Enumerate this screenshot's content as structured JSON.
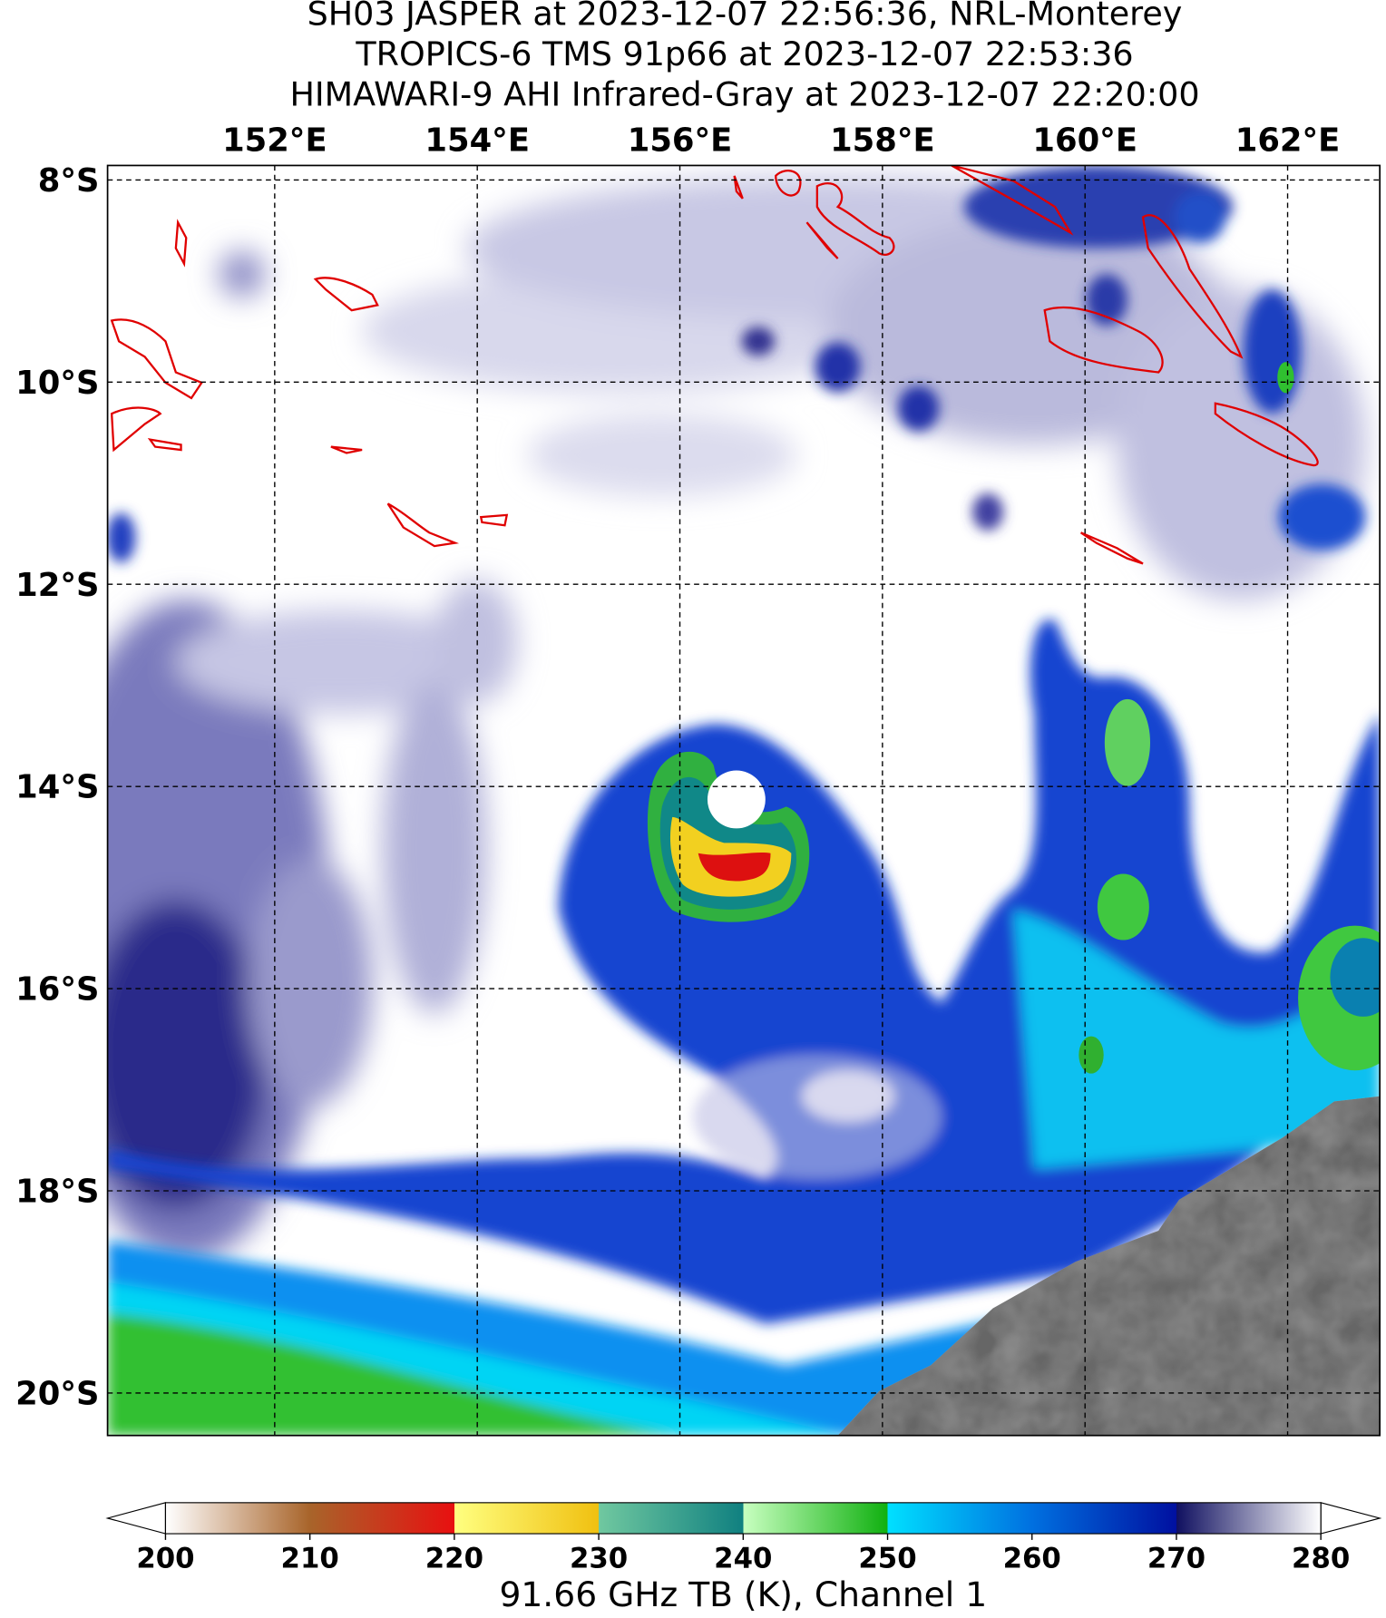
{
  "chart_data": {
    "type": "map",
    "title_lines": [
      "SH03 JASPER at 2023-12-07 22:56:36, NRL-Monterey",
      "TROPICS-6 TMS 91p66 at 2023-12-07 22:53:36",
      "HIMAWARI-9 AHI Infrared-Gray at 2023-12-07 22:20:00"
    ],
    "xlim": [
      150.35,
      162.91
    ],
    "ylim": [
      -20.42,
      -7.857
    ],
    "xticks": [
      {
        "value": 152,
        "label": "152°E"
      },
      {
        "value": 154,
        "label": "154°E"
      },
      {
        "value": 156,
        "label": "156°E"
      },
      {
        "value": 158,
        "label": "158°E"
      },
      {
        "value": 160,
        "label": "160°E"
      },
      {
        "value": 162,
        "label": "162°E"
      }
    ],
    "yticks": [
      {
        "value": -8,
        "label": "8°S"
      },
      {
        "value": -10,
        "label": "10°S"
      },
      {
        "value": -12,
        "label": "12°S"
      },
      {
        "value": -14,
        "label": "14°S"
      },
      {
        "value": -16,
        "label": "16°S"
      },
      {
        "value": -18,
        "label": "18°S"
      },
      {
        "value": -20,
        "label": "20°S"
      }
    ],
    "grid": true,
    "colorbar": {
      "range": [
        200,
        280
      ],
      "ticks": [
        200,
        210,
        220,
        230,
        240,
        250,
        260,
        270,
        280
      ],
      "label": "91.66 GHz TB (K), Channel 1",
      "colormap": [
        {
          "value": 200,
          "color": "#ffffff"
        },
        {
          "value": 210,
          "color": "#a8642a"
        },
        {
          "value": 220,
          "color": "#e81010"
        },
        {
          "value": 220,
          "color": "#ffff80"
        },
        {
          "value": 230,
          "color": "#f0c010"
        },
        {
          "value": 230,
          "color": "#70c8a0"
        },
        {
          "value": 240,
          "color": "#108080"
        },
        {
          "value": 240,
          "color": "#c8ffc0"
        },
        {
          "value": 250,
          "color": "#10b010"
        },
        {
          "value": 250,
          "color": "#00e0ff"
        },
        {
          "value": 260,
          "color": "#0070e0"
        },
        {
          "value": 270,
          "color": "#0010a0"
        },
        {
          "value": 270,
          "color": "#101060"
        },
        {
          "value": 280,
          "color": "#ffffff"
        }
      ]
    }
  }
}
